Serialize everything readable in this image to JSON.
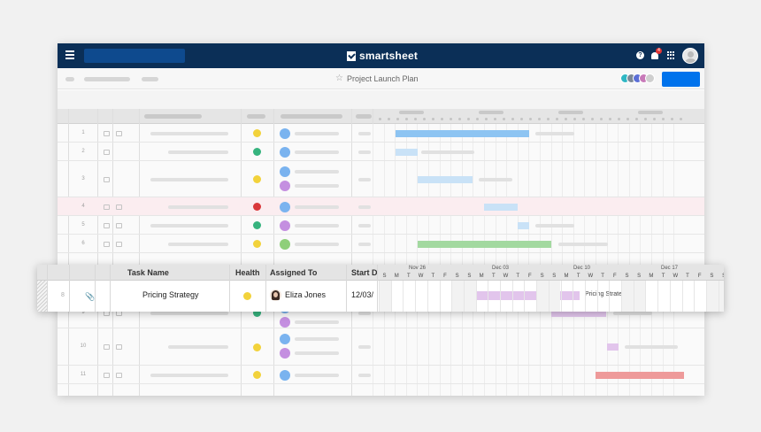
{
  "app": {
    "name": "smartsheet",
    "sheet_title": "Project Launch Plan",
    "notification_count": "4",
    "help_label": "?"
  },
  "colors": {
    "nav": "#0b2f57",
    "share_button": "#0073ec",
    "health_yellow": "#f2d23b",
    "health_green": "#36b37e",
    "health_red": "#d9383a",
    "bar_blue": "#8dc4f2",
    "bar_light_blue": "#c9e2f7",
    "bar_green": "#a3d9a0",
    "bar_purple": "#e2c5ec",
    "bar_red": "#ee9a9a"
  },
  "grid": {
    "rows": [
      {
        "num": "1",
        "health": "yellow",
        "bar": "blue"
      },
      {
        "num": "2",
        "health": "green",
        "bar": "light_blue"
      },
      {
        "num": "3",
        "health": "yellow",
        "bar": "light_blue"
      },
      {
        "num": "4",
        "health": "red",
        "bar": "light_blue"
      },
      {
        "num": "5",
        "health": "green",
        "bar": "light_blue"
      },
      {
        "num": "6",
        "health": "yellow",
        "bar": "green"
      },
      {
        "num": "9",
        "health": "green",
        "bar": "purple"
      },
      {
        "num": "10",
        "health": "yellow",
        "bar": "purple"
      },
      {
        "num": "11",
        "health": "yellow",
        "bar": "red"
      }
    ]
  },
  "popout": {
    "columns": {
      "task_name": "Task Name",
      "health": "Health",
      "assigned_to": "Assigned To",
      "start_date": "Start D"
    },
    "weeks": [
      "Nov 26",
      "Dec 03",
      "Dec 10",
      "Dec 17"
    ],
    "days": [
      "S",
      "M",
      "T",
      "W",
      "T",
      "F",
      "S",
      "S",
      "M",
      "T",
      "W",
      "T",
      "F",
      "S",
      "S",
      "M",
      "T",
      "W",
      "T",
      "F",
      "S",
      "S",
      "M",
      "T",
      "W",
      "T",
      "F",
      "S",
      "S"
    ],
    "row": {
      "num": "8",
      "task": "Pricing Strategy",
      "health": "yellow",
      "assignee": "Eliza Jones",
      "start": "12/03/",
      "bar_label": "Pricing Strategy"
    }
  }
}
